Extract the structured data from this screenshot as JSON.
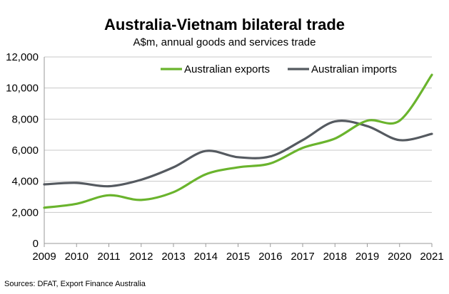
{
  "chart_data": {
    "type": "line",
    "title": "Australia-Vietnam bilateral trade",
    "subtitle": "A$m, annual goods and services trade",
    "x": [
      2009,
      2010,
      2011,
      2012,
      2013,
      2014,
      2015,
      2016,
      2017,
      2018,
      2019,
      2020,
      2021
    ],
    "x_tick_labels": [
      "2009",
      "2010",
      "2011",
      "2012",
      "2013",
      "2014",
      "2015",
      "2016",
      "2017",
      "2018",
      "2019",
      "2020",
      "2021"
    ],
    "ylim": [
      0,
      12000
    ],
    "y_ticks": [
      0,
      2000,
      4000,
      6000,
      8000,
      10000,
      12000
    ],
    "y_tick_labels": [
      "0",
      "2,000",
      "4,000",
      "6,000",
      "8,000",
      "10,000",
      "12,000"
    ],
    "grid": "horizontal",
    "legend_position": "top",
    "series": [
      {
        "name": "Australian exports",
        "color": "#6ab42d",
        "values": [
          2300,
          2550,
          3100,
          2800,
          3300,
          4450,
          4900,
          5150,
          6150,
          6750,
          7900,
          7900,
          10850
        ]
      },
      {
        "name": "Australian imports",
        "color": "#555a60",
        "values": [
          3800,
          3900,
          3680,
          4100,
          4900,
          5950,
          5550,
          5600,
          6650,
          7850,
          7550,
          6650,
          7050
        ]
      }
    ],
    "source": "Sources: DFAT, Export Finance Australia"
  }
}
